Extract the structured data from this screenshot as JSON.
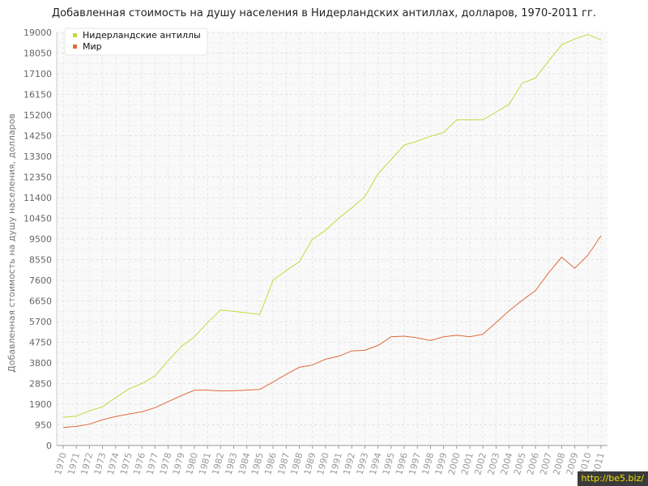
{
  "chart_data": {
    "type": "line",
    "title": "Добавленная стоимость на душу населения в Нидерландских антиллах, долларов, 1970-2011 гг.",
    "xlabel": "",
    "ylabel": "Добавленная стоимость на душу населения, долларов",
    "ylim": [
      0,
      19000
    ],
    "yticks": [
      0,
      950,
      1900,
      2850,
      3800,
      4750,
      5700,
      6650,
      7600,
      8550,
      9500,
      10450,
      11400,
      12350,
      13300,
      14250,
      15200,
      16150,
      17100,
      18050,
      19000
    ],
    "x": [
      "1970",
      "1971",
      "1972",
      "1973",
      "1974",
      "1975",
      "1976",
      "1977",
      "1978",
      "1979",
      "1980",
      "1981",
      "1982",
      "1983",
      "1984",
      "1985",
      "1986",
      "1987",
      "1988",
      "1989",
      "1990",
      "1991",
      "1992",
      "1993",
      "1994",
      "1995",
      "1996",
      "1997",
      "1998",
      "1999",
      "2000",
      "2001",
      "2002",
      "2003",
      "2004",
      "2005",
      "2006",
      "2007",
      "2008",
      "2009",
      "2010",
      "2011"
    ],
    "grid": true,
    "legend_position": "top-left",
    "series": [
      {
        "name": "Нидерландские антиллы",
        "color": "#bfdc3a",
        "values": [
          1300,
          1350,
          1600,
          1780,
          2200,
          2600,
          2850,
          3200,
          3900,
          4550,
          5000,
          5650,
          6230,
          6170,
          6100,
          6030,
          7600,
          8050,
          8450,
          9480,
          9900,
          10450,
          10930,
          11450,
          12500,
          13150,
          13820,
          14000,
          14220,
          14400,
          14980,
          14980,
          14980,
          15330,
          15700,
          16670,
          16900,
          17680,
          18430,
          18700,
          18900,
          18650
        ]
      },
      {
        "name": "Мир",
        "color": "#e06a3a",
        "values": [
          830,
          880,
          980,
          1190,
          1330,
          1450,
          1550,
          1740,
          2020,
          2290,
          2540,
          2550,
          2510,
          2520,
          2550,
          2580,
          2920,
          3270,
          3600,
          3700,
          3970,
          4100,
          4350,
          4380,
          4600,
          5000,
          5030,
          4950,
          4830,
          5000,
          5070,
          5000,
          5120,
          5650,
          6200,
          6680,
          7120,
          7940,
          8660,
          8150,
          8750,
          9650
        ]
      }
    ]
  },
  "watermark": "http://be5.biz/"
}
